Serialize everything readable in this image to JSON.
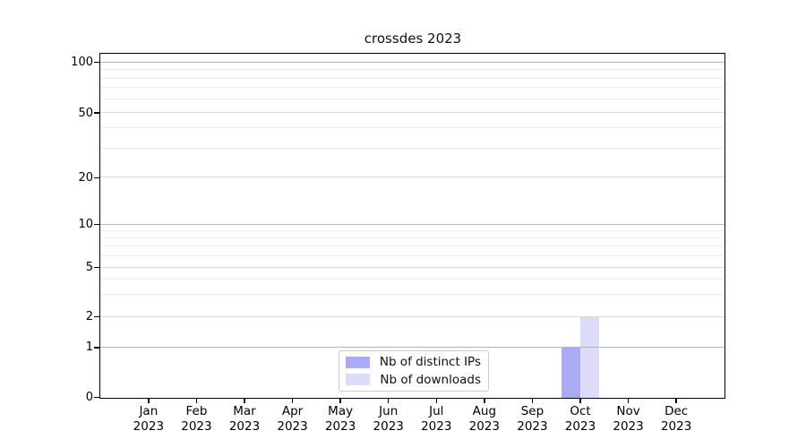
{
  "chart_data": {
    "type": "bar",
    "title": "crossdes 2023",
    "categories": [
      {
        "label": "Jan",
        "year": "2023"
      },
      {
        "label": "Feb",
        "year": "2023"
      },
      {
        "label": "Mar",
        "year": "2023"
      },
      {
        "label": "Apr",
        "year": "2023"
      },
      {
        "label": "May",
        "year": "2023"
      },
      {
        "label": "Jun",
        "year": "2023"
      },
      {
        "label": "Jul",
        "year": "2023"
      },
      {
        "label": "Aug",
        "year": "2023"
      },
      {
        "label": "Sep",
        "year": "2023"
      },
      {
        "label": "Oct",
        "year": "2023"
      },
      {
        "label": "Nov",
        "year": "2023"
      },
      {
        "label": "Dec",
        "year": "2023"
      }
    ],
    "series": [
      {
        "name": "Nb of distinct IPs",
        "color": "#aaaaf5",
        "values": [
          0,
          0,
          0,
          0,
          0,
          0,
          0,
          0,
          0,
          1,
          0,
          0
        ]
      },
      {
        "name": "Nb of downloads",
        "color": "#dcdcf7",
        "values": [
          0,
          0,
          0,
          0,
          0,
          0,
          0,
          0,
          0,
          2,
          0,
          0
        ]
      }
    ],
    "y_axis": {
      "scale": "symlog-like",
      "ticks": [
        0,
        1,
        2,
        5,
        10,
        20,
        50,
        100
      ],
      "ylim": [
        0,
        105
      ],
      "anchors": [
        [
          0,
          0.0
        ],
        [
          1,
          0.1455
        ],
        [
          2,
          0.2351
        ],
        [
          5,
          0.3779
        ],
        [
          10,
          0.5039
        ],
        [
          20,
          0.6403
        ],
        [
          50,
          0.8286
        ],
        [
          100,
          0.9753
        ]
      ],
      "emphasis_gridlines": [
        1,
        10,
        100
      ],
      "sub_gridlines": [
        2,
        5,
        20,
        50
      ],
      "minor_gridlines": [
        3,
        4,
        6,
        7,
        8,
        9,
        30,
        40,
        60,
        70,
        80,
        90
      ]
    },
    "grid": true,
    "legend_position": "bottom-center"
  }
}
